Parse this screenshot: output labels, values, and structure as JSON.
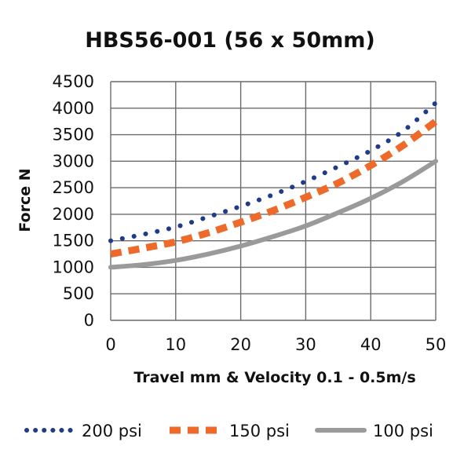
{
  "chart_data": {
    "type": "line",
    "title": "HBS56-001 (56 x 50mm)",
    "xlabel": "Travel mm & Velocity 0.1 - 0.5m/s",
    "ylabel": "Force N",
    "xlim": [
      0,
      50
    ],
    "ylim": [
      0,
      4500
    ],
    "x_ticks": [
      "0",
      "10",
      "20",
      "30",
      "40",
      "50"
    ],
    "y_ticks": [
      "0",
      "500",
      "1000",
      "1500",
      "2000",
      "2500",
      "3000",
      "3500",
      "4000",
      "4500"
    ],
    "grid": true,
    "legend_position": "bottom",
    "series": [
      {
        "name": "200 psi",
        "style": "dotted",
        "color": "#1f3b8a",
        "x": [
          0,
          5,
          10,
          15,
          20,
          25,
          30,
          35,
          40,
          45,
          50
        ],
        "y": [
          1500,
          1620,
          1760,
          1950,
          2150,
          2370,
          2620,
          2900,
          3200,
          3570,
          4100
        ]
      },
      {
        "name": "150 psi",
        "style": "dashed",
        "color": "#ee6a2a",
        "x": [
          0,
          5,
          10,
          15,
          20,
          25,
          30,
          35,
          40,
          45,
          50
        ],
        "y": [
          1250,
          1360,
          1480,
          1650,
          1850,
          2070,
          2320,
          2590,
          2920,
          3300,
          3750
        ]
      },
      {
        "name": "100 psi",
        "style": "solid",
        "color": "#9a9a9a",
        "x": [
          0,
          5,
          10,
          15,
          20,
          25,
          30,
          35,
          40,
          45,
          50
        ],
        "y": [
          1000,
          1050,
          1130,
          1250,
          1400,
          1580,
          1780,
          2030,
          2300,
          2620,
          3000
        ]
      }
    ]
  }
}
